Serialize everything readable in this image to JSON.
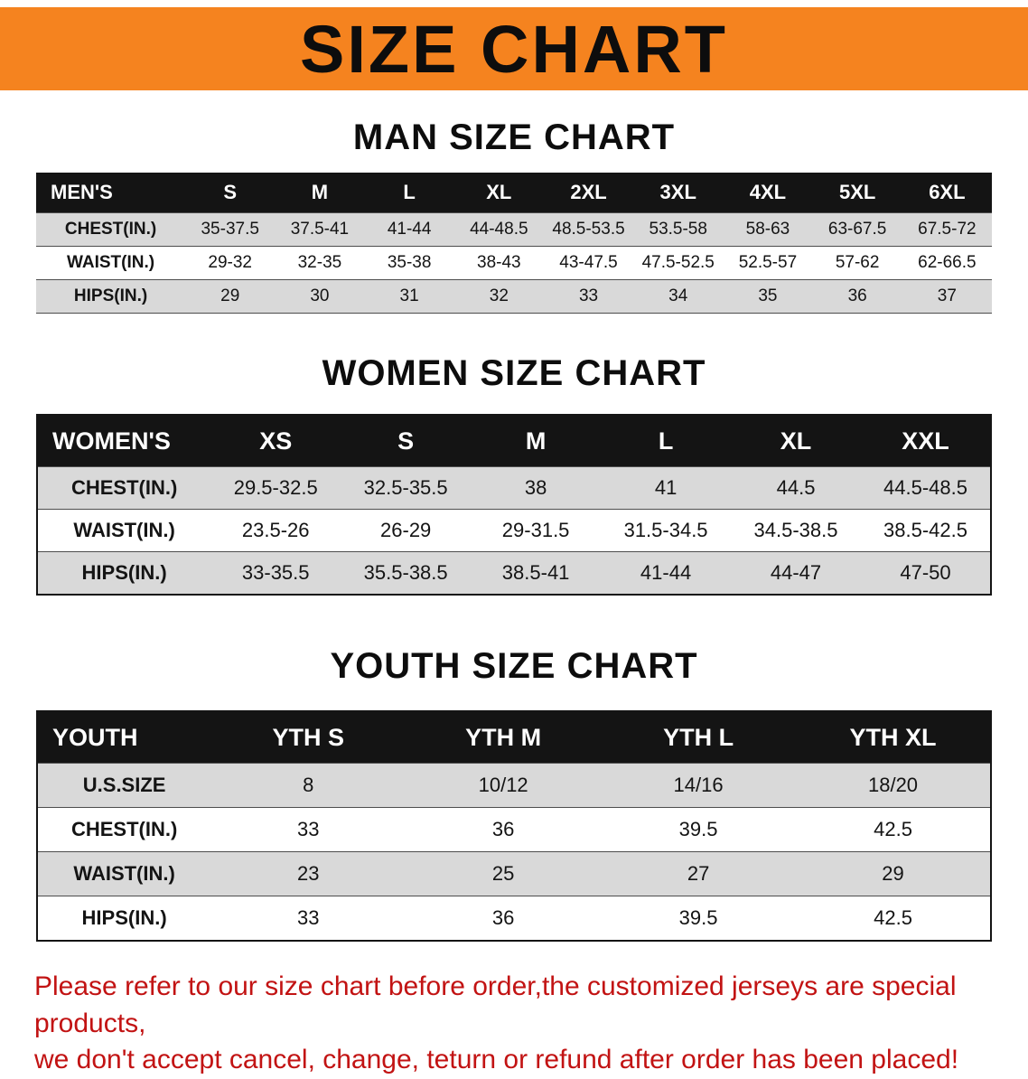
{
  "banner": {
    "title": "SIZE CHART"
  },
  "sections": [
    {
      "heading": "MAN SIZE CHART",
      "table": {
        "header": [
          "MEN'S",
          "S",
          "M",
          "L",
          "XL",
          "2XL",
          "3XL",
          "4XL",
          "5XL",
          "6XL"
        ],
        "rows": [
          {
            "label": "CHEST(IN.)",
            "values": [
              "35-37.5",
              "37.5-41",
              "41-44",
              "44-48.5",
              "48.5-53.5",
              "53.5-58",
              "58-63",
              "63-67.5",
              "67.5-72"
            ]
          },
          {
            "label": "WAIST(IN.)",
            "values": [
              "29-32",
              "32-35",
              "35-38",
              "38-43",
              "43-47.5",
              "47.5-52.5",
              "52.5-57",
              "57-62",
              "62-66.5"
            ]
          },
          {
            "label": "HIPS(IN.)",
            "values": [
              "29",
              "30",
              "31",
              "32",
              "33",
              "34",
              "35",
              "36",
              "37"
            ]
          }
        ]
      }
    },
    {
      "heading": "WOMEN SIZE CHART",
      "table": {
        "header": [
          "WOMEN'S",
          "XS",
          "S",
          "M",
          "L",
          "XL",
          "XXL"
        ],
        "rows": [
          {
            "label": "CHEST(IN.)",
            "values": [
              "29.5-32.5",
              "32.5-35.5",
              "38",
              "41",
              "44.5",
              "44.5-48.5"
            ]
          },
          {
            "label": "WAIST(IN.)",
            "values": [
              "23.5-26",
              "26-29",
              "29-31.5",
              "31.5-34.5",
              "34.5-38.5",
              "38.5-42.5"
            ]
          },
          {
            "label": "HIPS(IN.)",
            "values": [
              "33-35.5",
              "35.5-38.5",
              "38.5-41",
              "41-44",
              "44-47",
              "47-50"
            ]
          }
        ]
      }
    },
    {
      "heading": "YOUTH SIZE CHART",
      "table": {
        "header": [
          "YOUTH",
          "YTH S",
          "YTH M",
          "YTH L",
          "YTH XL"
        ],
        "rows": [
          {
            "label": "U.S.SIZE",
            "values": [
              "8",
              "10/12",
              "14/16",
              "18/20"
            ]
          },
          {
            "label": "CHEST(IN.)",
            "values": [
              "33",
              "36",
              "39.5",
              "42.5"
            ]
          },
          {
            "label": "WAIST(IN.)",
            "values": [
              "23",
              "25",
              "27",
              "29"
            ]
          },
          {
            "label": "HIPS(IN.)",
            "values": [
              "33",
              "36",
              "39.5",
              "42.5"
            ]
          }
        ]
      }
    }
  ],
  "footer": {
    "line1": "Please refer to our size chart before order,the customized jerseys are special products,",
    "line2": "we don't accept cancel, change, teturn or refund after order has been placed!"
  },
  "colors": {
    "banner_bg": "#f5831f",
    "table_header_bg": "#141414",
    "alt_row_bg": "#d9d9d9",
    "footer_text": "#c21313"
  }
}
